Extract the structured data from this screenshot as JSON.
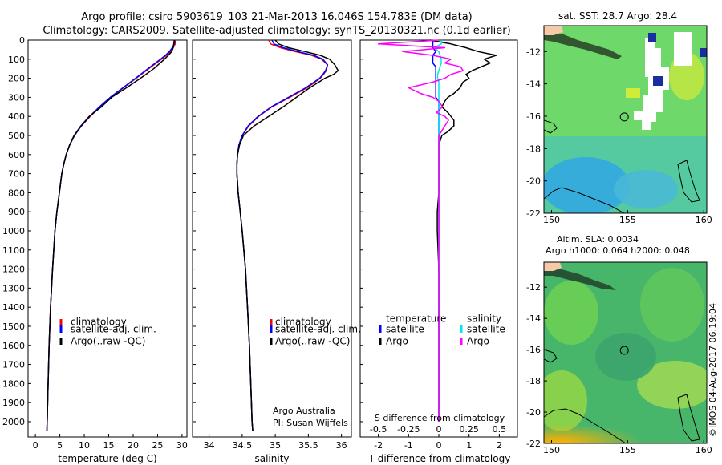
{
  "header": {
    "line1": "Argo profile: csiro 5903619_103 21-Mar-2013 16.046S 154.783E (DM data)",
    "line2": "Climatology: CARS2009. Satellite-adjusted climatology: synTS_20130321.nc (0.1d earlier)"
  },
  "footer": {
    "institution": "Argo Australia",
    "pi": "PI: Susan Wijffels",
    "stamp": "©IMOS 04-Aug-2017 06:19:04"
  },
  "legend_profile": {
    "climatology": "climatology",
    "satellite": "satellite-adj. clim.",
    "argo": "Argo(..raw -QC)"
  },
  "legend_diff": {
    "temperature": "temperature",
    "salinity": "salinity",
    "satellite": "satellite",
    "argo": "Argo"
  },
  "maps": {
    "sst_title": "sat. SST: 28.7  Argo: 28.4",
    "sla_title1": "Altim. SLA: 0.0034",
    "sla_title2": "Argo h1000: 0.064  h2000: 0.048"
  },
  "colors": {
    "climatology": "#ff0000",
    "satellite": "#0000ff",
    "argo": "#000000",
    "sal_satellite": "#00e5ee",
    "sal_argo": "#ff00ff"
  },
  "chart_data": [
    {
      "type": "line",
      "id": "temperature",
      "xlabel": "temperature (deg C)",
      "ylabel": "",
      "xlim": [
        -1.5,
        31
      ],
      "ylim": [
        2080,
        0
      ],
      "xticks": [
        0,
        5,
        10,
        15,
        20,
        25,
        30
      ],
      "yticks": [
        0,
        100,
        200,
        300,
        400,
        500,
        600,
        700,
        800,
        900,
        1000,
        1100,
        1200,
        1300,
        1400,
        1500,
        1600,
        1700,
        1800,
        1900,
        2000
      ],
      "depth": [
        0,
        20,
        40,
        60,
        80,
        100,
        150,
        200,
        250,
        300,
        350,
        400,
        450,
        500,
        550,
        600,
        650,
        700,
        800,
        900,
        1000,
        1200,
        1400,
        1600,
        1800,
        2000,
        2050
      ],
      "series": [
        {
          "name": "climatology",
          "values": [
            28.7,
            28.6,
            28.2,
            27.6,
            26.8,
            25.8,
            23.2,
            20.6,
            18.0,
            15.4,
            13.2,
            11.2,
            9.4,
            8.0,
            7.0,
            6.3,
            5.8,
            5.4,
            4.9,
            4.4,
            4.0,
            3.5,
            3.1,
            2.8,
            2.6,
            2.4,
            2.35
          ]
        },
        {
          "name": "satellite-adj. clim.",
          "values": [
            28.5,
            28.4,
            28.0,
            27.4,
            26.6,
            25.6,
            23.0,
            20.5,
            17.9,
            15.3,
            13.1,
            11.1,
            9.4,
            8.0,
            7.0,
            6.3,
            5.8,
            5.4,
            4.9,
            4.4,
            4.0,
            3.5,
            3.1,
            2.8,
            2.6,
            2.4,
            2.35
          ]
        },
        {
          "name": "Argo(..raw -QC)",
          "values": [
            28.4,
            28.3,
            28.2,
            27.9,
            27.2,
            26.4,
            24.2,
            21.5,
            18.6,
            15.6,
            13.5,
            11.0,
            9.3,
            7.9,
            7.0,
            6.3,
            5.8,
            5.4,
            4.9,
            4.4,
            4.0,
            3.5,
            3.1,
            2.8,
            2.6,
            2.4,
            2.35
          ]
        }
      ]
    },
    {
      "type": "line",
      "id": "salinity",
      "xlabel": "salinity",
      "ylabel": "",
      "xlim": [
        33.75,
        36.15
      ],
      "ylim": [
        2080,
        0
      ],
      "xticks": [
        34,
        34.5,
        35,
        35.5,
        36
      ],
      "depth": [
        0,
        20,
        40,
        60,
        80,
        100,
        130,
        160,
        180,
        200,
        250,
        300,
        350,
        400,
        450,
        500,
        550,
        600,
        650,
        700,
        800,
        900,
        1000,
        1200,
        1400,
        1600,
        1800,
        2000,
        2050
      ],
      "series": [
        {
          "name": "climatology",
          "values": [
            34.9,
            34.93,
            35.08,
            35.3,
            35.55,
            35.7,
            35.79,
            35.77,
            35.73,
            35.68,
            35.48,
            35.22,
            34.95,
            34.75,
            34.6,
            34.5,
            34.45,
            34.43,
            34.42,
            34.42,
            34.44,
            34.47,
            34.5,
            34.55,
            34.58,
            34.61,
            34.63,
            34.65,
            34.66
          ]
        },
        {
          "name": "satellite-adj. clim.",
          "values": [
            34.95,
            34.98,
            35.12,
            35.34,
            35.58,
            35.72,
            35.79,
            35.76,
            35.72,
            35.67,
            35.46,
            35.2,
            34.94,
            34.74,
            34.59,
            34.5,
            34.45,
            34.43,
            34.42,
            34.42,
            34.44,
            34.47,
            34.5,
            34.55,
            34.58,
            34.61,
            34.63,
            34.65,
            34.66
          ]
        },
        {
          "name": "Argo(..raw -QC)",
          "values": [
            35.0,
            35.05,
            35.2,
            35.45,
            35.68,
            35.82,
            35.9,
            35.95,
            35.88,
            35.75,
            35.52,
            35.32,
            35.12,
            34.9,
            34.68,
            34.52,
            34.46,
            34.43,
            34.42,
            34.42,
            34.44,
            34.47,
            34.5,
            34.55,
            34.58,
            34.61,
            34.63,
            34.65,
            34.66
          ]
        }
      ]
    },
    {
      "type": "line",
      "id": "difference",
      "xlabel": "T difference from climatology",
      "xlabel_top": "S difference from climatology",
      "xlim": [
        -2.6,
        2.6
      ],
      "ylim": [
        2080,
        0
      ],
      "xticks": [
        -2,
        -1,
        0,
        1,
        2
      ],
      "xticks_top": [
        "-0.5",
        "-0.25",
        "0",
        "0.25",
        "0.5"
      ],
      "depth": [
        0,
        20,
        40,
        60,
        80,
        100,
        120,
        140,
        160,
        180,
        200,
        220,
        250,
        280,
        300,
        320,
        350,
        380,
        400,
        420,
        450,
        480,
        500,
        550,
        600,
        700,
        800,
        900,
        1000,
        1200,
        1400,
        1600,
        1800,
        2000
      ],
      "series": [
        {
          "name": "T satellite",
          "values": [
            -0.2,
            -0.2,
            -0.2,
            -0.1,
            -0.2,
            -0.2,
            -0.2,
            -0.1,
            -0.1,
            -0.1,
            -0.1,
            -0.1,
            -0.1,
            -0.1,
            -0.1,
            0,
            0,
            0,
            0,
            0,
            0,
            0,
            0,
            0,
            0,
            0,
            0,
            0,
            0,
            0,
            0,
            0,
            0,
            0
          ]
        },
        {
          "name": "T Argo",
          "values": [
            -0.3,
            0.4,
            0.9,
            1.3,
            1.9,
            1.5,
            1.7,
            1.4,
            1.1,
            0.9,
            1.0,
            0.8,
            0.7,
            0.5,
            0.3,
            0.2,
            0.1,
            0.3,
            0.4,
            0.5,
            0.5,
            0.3,
            0.1,
            0,
            0,
            0,
            0,
            -0.05,
            -0.05,
            0,
            0,
            0,
            0,
            0
          ]
        },
        {
          "name": "S satellite",
          "values": [
            0.03,
            0.02,
            -0.04,
            0.0,
            0.01,
            0.02,
            0.02,
            0.01,
            0.0,
            -0.01,
            -0.01,
            0.0,
            0.0,
            0.0,
            0.0,
            0.0,
            0.0,
            0.0,
            0.0,
            0.0,
            0.0,
            0.0,
            0.0,
            0.0,
            0.0,
            0.0,
            0.0,
            0.0,
            0.0,
            0.0,
            0.0,
            0.0,
            0.0,
            0.0
          ]
        },
        {
          "name": "S Argo",
          "values": [
            0.0,
            -0.5,
            0.05,
            -0.3,
            -0.05,
            0.1,
            0.05,
            0.18,
            0.2,
            0.1,
            0.05,
            -0.05,
            -0.25,
            -0.15,
            -0.05,
            0.0,
            0.03,
            -0.02,
            0.05,
            0.08,
            0.05,
            0.02,
            0.0,
            0.0,
            0.0,
            0.0,
            0.0,
            0.0,
            0.0,
            0.0,
            0.0,
            0.0,
            0.0,
            0.0
          ]
        }
      ]
    },
    {
      "type": "heatmap",
      "id": "sst_map",
      "title": "sat. SST: 28.7  Argo: 28.4",
      "xlim": [
        149.5,
        160.2
      ],
      "ylim": [
        -22,
        -10.4
      ],
      "xticks": [
        150,
        155,
        160
      ],
      "yticks": [
        -12,
        -14,
        -16,
        -18,
        -20,
        -22
      ],
      "float_lon": 154.783,
      "float_lat": -16.046
    },
    {
      "type": "heatmap",
      "id": "sla_map",
      "title": "Altim. SLA: 0.0034",
      "xlim": [
        149.5,
        160.2
      ],
      "ylim": [
        -22,
        -10.4
      ],
      "xticks": [
        150,
        155,
        160
      ],
      "yticks": [
        -12,
        -14,
        -16,
        -18,
        -20,
        -22
      ],
      "float_lon": 154.783,
      "float_lat": -16.046
    }
  ]
}
